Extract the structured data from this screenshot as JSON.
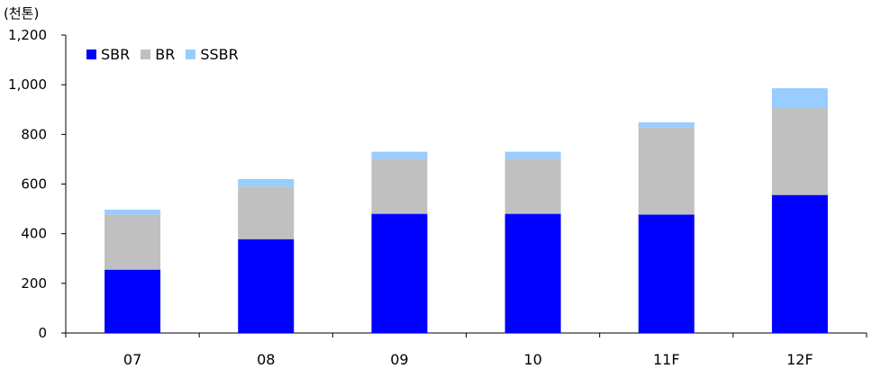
{
  "chart_data": {
    "type": "bar",
    "stacked": true,
    "unit_label": "(천톤)",
    "categories": [
      "07",
      "08",
      "09",
      "10",
      "11F",
      "12F"
    ],
    "series": [
      {
        "name": "SBR",
        "color": "#0000ff",
        "values": [
          255,
          378,
          480,
          480,
          477,
          556
        ]
      },
      {
        "name": "BR",
        "color": "#c0c0c0",
        "values": [
          222,
          212,
          222,
          222,
          352,
          350
        ]
      },
      {
        "name": "SSBR",
        "color": "#99ccff",
        "values": [
          20,
          30,
          28,
          28,
          20,
          80
        ]
      }
    ],
    "yticks": [
      "0",
      "200",
      "400",
      "600",
      "800",
      "1,000",
      "1,200"
    ],
    "ylim": [
      0,
      1200
    ],
    "legend_position": "top-left",
    "grid": false
  }
}
